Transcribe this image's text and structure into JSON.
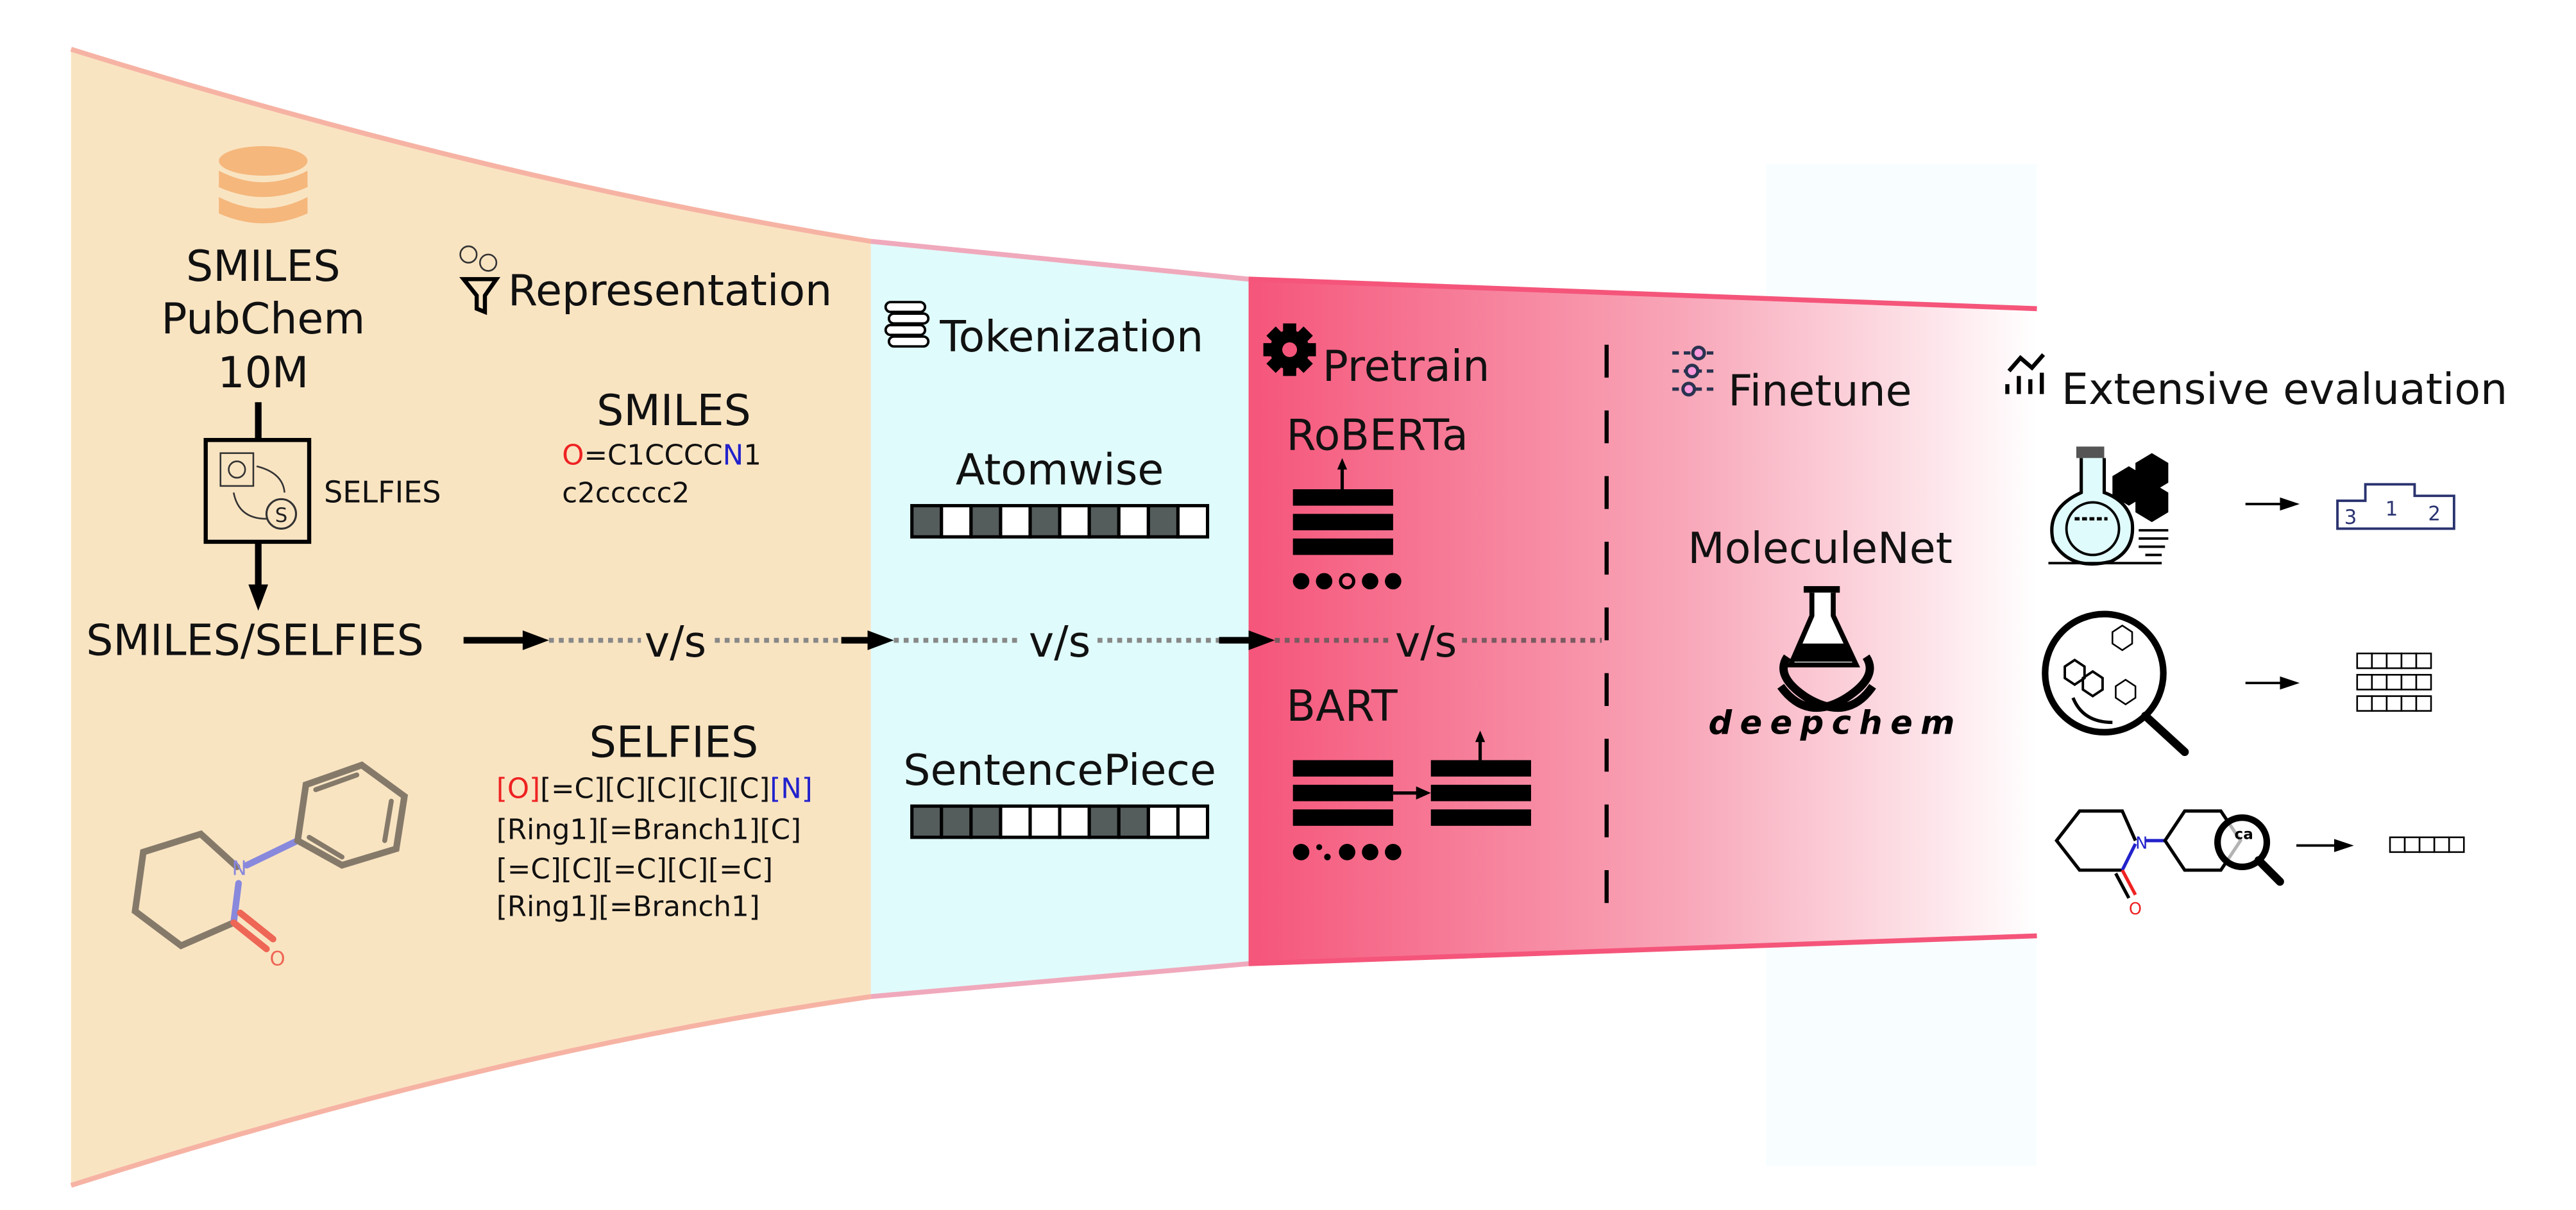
{
  "colors": {
    "representation_bg": "#f9e4c2",
    "tokenization_bg": "#e0fbfb",
    "pretrain_accent": "#f5557a",
    "database": "#f5b77c",
    "oxygen": "#ee2222",
    "nitrogen": "#2222cc",
    "token_dark": "#555c5c"
  },
  "source": {
    "icon": "database-icon",
    "line1": "SMILES",
    "line2": "PubChem",
    "line3": "10M",
    "converter_label": "SELFIES",
    "converter_symbol": "S",
    "output": "SMILES/SELFIES"
  },
  "vs": "v/s",
  "representation": {
    "title": "Representation",
    "icon": "funnel-icon",
    "smiles": {
      "title": "SMILES",
      "line1": [
        "O",
        "=C1CCCC",
        "N",
        "1"
      ],
      "line2": "c2ccccc2"
    },
    "selfies": {
      "title": "SELFIES",
      "line1": [
        "[O]",
        "[=C][C][C][C][C]",
        "[N]"
      ],
      "line2": "[Ring1][=Branch1][C]",
      "line3": "[=C][C][=C][C][=C]",
      "line4": "[Ring1][=Branch1]"
    },
    "molecule_atoms": {
      "n": "N",
      "o": "O"
    }
  },
  "tokenization": {
    "title": "Tokenization",
    "icon": "coins-icon",
    "atomwise": {
      "label": "Atomwise",
      "pattern": [
        1,
        0,
        1,
        0,
        1,
        0,
        1,
        0,
        1,
        0
      ]
    },
    "sentencepiece": {
      "label": "SentencePiece",
      "pattern": [
        1,
        1,
        1,
        0,
        0,
        0,
        1,
        1,
        0,
        0
      ]
    }
  },
  "pretrain": {
    "title": "Pretrain",
    "icon": "gear-icon",
    "model1": "RoBERTa",
    "model2": "BART"
  },
  "finetune": {
    "title": "Finetune",
    "icon": "sliders-icon",
    "dataset": "MoleculeNet",
    "logo_text": "deepchem"
  },
  "evaluation": {
    "title": "Extensive evaluation",
    "icon": "chart-icon",
    "podium": [
      "3",
      "1",
      "2"
    ],
    "probe_label": "ca",
    "molecule_atoms": {
      "n": "N",
      "o": "O"
    }
  }
}
